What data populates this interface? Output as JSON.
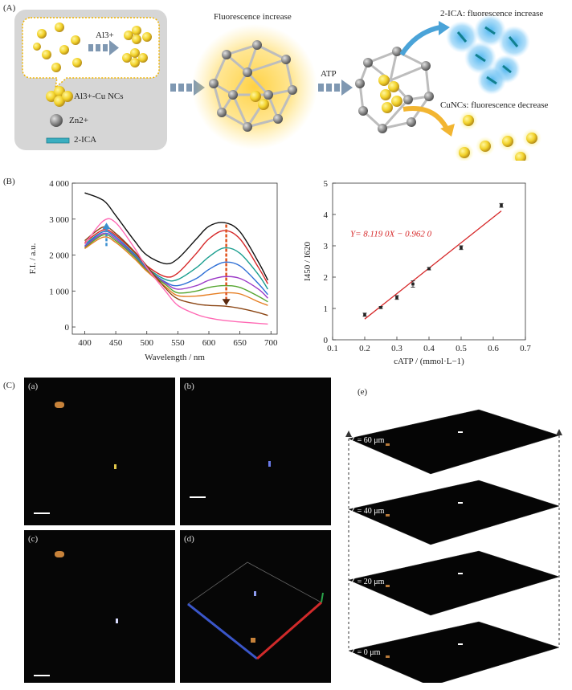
{
  "panel_labels": {
    "A": "(A)",
    "B": "(B)",
    "C": "(C)"
  },
  "schematic": {
    "al_label": "Al3+",
    "legend": [
      {
        "label": "Al3+-Cu NCs"
      },
      {
        "label": "Zn2+"
      },
      {
        "label": "2-ICA"
      }
    ],
    "center_caption": "Fluorescence increase",
    "atp_label": "ATP",
    "right_top": "2-ICA: fluorescence increase",
    "right_bottom": "CuNCs: fluorescence decrease"
  },
  "chart_data": [
    {
      "type": "line",
      "xlabel": "Wavelength / nm",
      "ylabel": "F.I. / a.u.",
      "xlim": [
        380,
        710
      ],
      "ylim": [
        -200,
        4000
      ],
      "xticks": [
        400,
        450,
        500,
        550,
        600,
        650,
        700
      ],
      "yticks": [
        0,
        1000,
        2000,
        3000,
        4000
      ],
      "ytick_labels": [
        "0",
        "1 000",
        "2 000",
        "3 000",
        "4 000"
      ],
      "x": [
        400,
        430,
        450,
        480,
        500,
        530,
        550,
        580,
        600,
        625,
        650,
        680,
        695
      ],
      "series": [
        {
          "color": "#111111",
          "values": [
            3730,
            3520,
            3100,
            2400,
            2000,
            1760,
            1900,
            2450,
            2800,
            2900,
            2650,
            1800,
            1300
          ]
        },
        {
          "color": "#d62728",
          "values": [
            2350,
            2700,
            2550,
            2080,
            1700,
            1400,
            1500,
            2050,
            2450,
            2680,
            2450,
            1650,
            1200
          ]
        },
        {
          "color": "#1a9e8f",
          "values": [
            2300,
            2650,
            2500,
            2030,
            1650,
            1320,
            1320,
            1650,
            1950,
            2200,
            2050,
            1450,
            1050
          ]
        },
        {
          "color": "#2e6fd6",
          "values": [
            2250,
            2650,
            2500,
            2000,
            1620,
            1250,
            1150,
            1350,
            1600,
            1800,
            1700,
            1200,
            900
          ]
        },
        {
          "color": "#9b3ac7",
          "values": [
            2230,
            2600,
            2450,
            1970,
            1600,
            1220,
            1050,
            1150,
            1300,
            1400,
            1350,
            1050,
            800
          ]
        },
        {
          "color": "#55a630",
          "values": [
            2200,
            2560,
            2400,
            1950,
            1580,
            1180,
            950,
            1000,
            1100,
            1150,
            1100,
            850,
            700
          ]
        },
        {
          "color": "#e67e22",
          "values": [
            2180,
            2500,
            2350,
            1900,
            1550,
            1120,
            870,
            860,
            900,
            950,
            920,
            700,
            600
          ]
        },
        {
          "color": "#8b4513",
          "values": [
            2400,
            2780,
            2600,
            2100,
            1700,
            1080,
            780,
            640,
            600,
            580,
            520,
            400,
            320
          ]
        },
        {
          "color": "#ff69b4",
          "values": [
            2300,
            2950,
            2900,
            2200,
            1650,
            1000,
            600,
            350,
            250,
            180,
            140,
            100,
            80
          ]
        }
      ]
    },
    {
      "type": "scatter",
      "xlabel": "cATP / (mmol·L−1)",
      "ylabel": "I450 / I620",
      "xlim": [
        0.1,
        0.7
      ],
      "ylim": [
        0,
        5
      ],
      "xticks": [
        0.1,
        0.2,
        0.3,
        0.4,
        0.5,
        0.6,
        0.7
      ],
      "yticks": [
        0,
        1,
        2,
        3,
        4,
        5
      ],
      "x": [
        0.2,
        0.25,
        0.3,
        0.35,
        0.4,
        0.5,
        0.625
      ],
      "y": [
        0.8,
        1.03,
        1.35,
        1.78,
        2.27,
        2.94,
        4.29
      ],
      "err": [
        0.05,
        0.03,
        0.06,
        0.1,
        0.04,
        0.06,
        0.06
      ],
      "fit": {
        "slope": 8.119,
        "intercept": -0.962,
        "x_range": [
          0.2,
          0.625
        ]
      },
      "equation": "Y= 8.119 0X − 0.962 0"
    }
  ],
  "micro": {
    "labels": {
      "a": "(a)",
      "b": "(b)",
      "c": "(c)",
      "d": "(d)",
      "e": "(e)"
    },
    "z_labels": [
      "Z = 60 μm",
      "Z = 40 μm",
      "Z = 20 μm",
      "Z = 0 μm"
    ]
  }
}
